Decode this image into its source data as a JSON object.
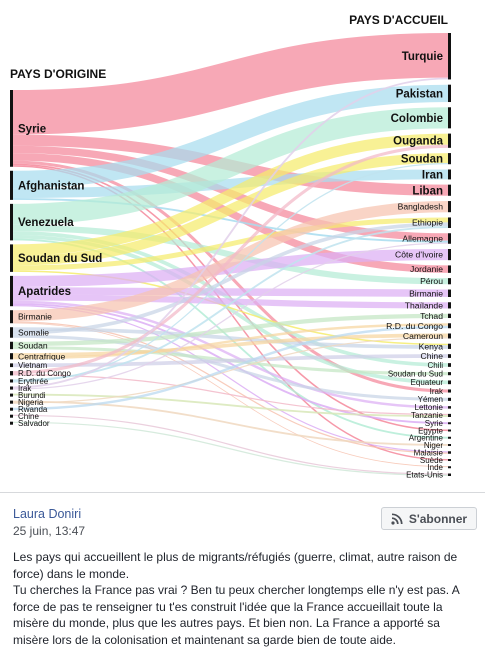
{
  "chart_data": {
    "type": "sankey",
    "left_header": "PAYS D'ORIGINE",
    "right_header": "PAYS D'ACCUEIL",
    "origins": [
      {
        "name": "Syrie",
        "color": "#f4879a",
        "tier": 1
      },
      {
        "name": "Afghanistan",
        "color": "#a7dcef",
        "tier": 2
      },
      {
        "name": "Venezuela",
        "color": "#b4ecd6",
        "tier": 2
      },
      {
        "name": "Soudan du Sud",
        "color": "#f5ec6c",
        "tier": 2
      },
      {
        "name": "Apatrides",
        "color": "#dcaef4",
        "tier": 2
      },
      {
        "name": "Birmanie",
        "color": "#f7c3b0",
        "tier": 3
      },
      {
        "name": "Somalie",
        "color": "#c7d4e6",
        "tier": 3
      },
      {
        "name": "Soudan",
        "color": "#c3e6c3",
        "tier": 3
      },
      {
        "name": "Centrafrique",
        "color": "#f6d6a0",
        "tier": 3
      },
      {
        "name": "Vietnam",
        "color": "#cfcfe8",
        "tier": 4
      },
      {
        "name": "R.D. du Congo",
        "color": "#f2b8c8",
        "tier": 4
      },
      {
        "name": "Erythrée",
        "color": "#bfe3ee",
        "tier": 4
      },
      {
        "name": "Irak",
        "color": "#e2d0ea",
        "tier": 4
      },
      {
        "name": "Burundi",
        "color": "#d8e8b8",
        "tier": 4
      },
      {
        "name": "Nigeria",
        "color": "#f0d8c0",
        "tier": 4
      },
      {
        "name": "Rwanda",
        "color": "#b8d8f0",
        "tier": 4
      },
      {
        "name": "Chine",
        "color": "#e8c8d8",
        "tier": 4
      },
      {
        "name": "Salvador",
        "color": "#d0e8d8",
        "tier": 4
      }
    ],
    "destinations": [
      {
        "name": "Turquie",
        "tier": 1
      },
      {
        "name": "Pakistan",
        "tier": 2
      },
      {
        "name": "Colombie",
        "tier": 2
      },
      {
        "name": "Ouganda",
        "tier": 2
      },
      {
        "name": "Soudan",
        "tier": 2
      },
      {
        "name": "Iran",
        "tier": 2
      },
      {
        "name": "Liban",
        "tier": 2
      },
      {
        "name": "Bangladesh",
        "tier": 3
      },
      {
        "name": "Ethiopie",
        "tier": 3
      },
      {
        "name": "Allemagne",
        "tier": 3
      },
      {
        "name": "Côte d'Ivoire",
        "tier": 3
      },
      {
        "name": "Jordanie",
        "tier": 3
      },
      {
        "name": "Pérou",
        "tier": 3
      },
      {
        "name": "Birmanie",
        "tier": 3
      },
      {
        "name": "Thaïlande",
        "tier": 3
      },
      {
        "name": "Tchad",
        "tier": 3
      },
      {
        "name": "R.D. du Congo",
        "tier": 3
      },
      {
        "name": "Cameroun",
        "tier": 3
      },
      {
        "name": "Kenya",
        "tier": 3
      },
      {
        "name": "Chine",
        "tier": 3
      },
      {
        "name": "Chili",
        "tier": 4
      },
      {
        "name": "Soudan du Sud",
        "tier": 4
      },
      {
        "name": "Equateur",
        "tier": 4
      },
      {
        "name": "Irak",
        "tier": 4
      },
      {
        "name": "Yémen",
        "tier": 4
      },
      {
        "name": "Lettonie",
        "tier": 4
      },
      {
        "name": "Tanzanie",
        "tier": 4
      },
      {
        "name": "Syrie",
        "tier": 4
      },
      {
        "name": "Egypte",
        "tier": 4
      },
      {
        "name": "Argentine",
        "tier": 4
      },
      {
        "name": "Niger",
        "tier": 4
      },
      {
        "name": "Malaisie",
        "tier": 4
      },
      {
        "name": "Suède",
        "tier": 4
      },
      {
        "name": "Inde",
        "tier": 4
      },
      {
        "name": "Etats-Unis",
        "tier": 4
      }
    ],
    "flows": [
      {
        "from": "Syrie",
        "to": "Turquie",
        "value": 3.6
      },
      {
        "from": "Syrie",
        "to": "Liban",
        "value": 0.9
      },
      {
        "from": "Syrie",
        "to": "Allemagne",
        "value": 0.6
      },
      {
        "from": "Syrie",
        "to": "Jordanie",
        "value": 0.6
      },
      {
        "from": "Syrie",
        "to": "Irak",
        "value": 0.25
      },
      {
        "from": "Syrie",
        "to": "Egypte",
        "value": 0.13
      },
      {
        "from": "Syrie",
        "to": "Suède",
        "value": 0.12
      },
      {
        "from": "Afghanistan",
        "to": "Pakistan",
        "value": 1.4
      },
      {
        "from": "Afghanistan",
        "to": "Iran",
        "value": 0.8
      },
      {
        "from": "Afghanistan",
        "to": "Allemagne",
        "value": 0.15
      },
      {
        "from": "Venezuela",
        "to": "Colombie",
        "value": 1.7
      },
      {
        "from": "Venezuela",
        "to": "Pérou",
        "value": 0.5
      },
      {
        "from": "Venezuela",
        "to": "Chili",
        "value": 0.3
      },
      {
        "from": "Venezuela",
        "to": "Equateur",
        "value": 0.3
      },
      {
        "from": "Venezuela",
        "to": "Argentine",
        "value": 0.15
      },
      {
        "from": "Soudan du Sud",
        "to": "Ouganda",
        "value": 0.9
      },
      {
        "from": "Soudan du Sud",
        "to": "Soudan",
        "value": 0.8
      },
      {
        "from": "Soudan du Sud",
        "to": "Ethiopie",
        "value": 0.4
      },
      {
        "from": "Soudan du Sud",
        "to": "Kenya",
        "value": 0.12
      },
      {
        "from": "Apatrides",
        "to": "Côte d'Ivoire",
        "value": 0.9
      },
      {
        "from": "Apatrides",
        "to": "Birmanie",
        "value": 0.6
      },
      {
        "from": "Apatrides",
        "to": "Thaïlande",
        "value": 0.5
      },
      {
        "from": "Apatrides",
        "to": "Lettonie",
        "value": 0.2
      },
      {
        "from": "Apatrides",
        "to": "Syrie",
        "value": 0.15
      },
      {
        "from": "Apatrides",
        "to": "Malaisie",
        "value": 0.1
      },
      {
        "from": "Birmanie",
        "to": "Bangladesh",
        "value": 0.9
      },
      {
        "from": "Birmanie",
        "to": "Malaisie",
        "value": 0.1
      },
      {
        "from": "Birmanie",
        "to": "Inde",
        "value": 0.05
      },
      {
        "from": "Somalie",
        "to": "Kenya",
        "value": 0.3
      },
      {
        "from": "Somalie",
        "to": "Ethiopie",
        "value": 0.3
      },
      {
        "from": "Somalie",
        "to": "Yémen",
        "value": 0.25
      },
      {
        "from": "Soudan",
        "to": "Tchad",
        "value": 0.35
      },
      {
        "from": "Soudan",
        "to": "Soudan du Sud",
        "value": 0.25
      },
      {
        "from": "Centrafrique",
        "to": "Cameroun",
        "value": 0.3
      },
      {
        "from": "Centrafrique",
        "to": "R.D. du Congo",
        "value": 0.2
      },
      {
        "from": "Vietnam",
        "to": "Chine",
        "value": 0.3
      },
      {
        "from": "R.D. du Congo",
        "to": "Ouganda",
        "value": 0.25
      },
      {
        "from": "R.D. du Congo",
        "to": "Tanzanie",
        "value": 0.1
      },
      {
        "from": "Erythrée",
        "to": "Ethiopie",
        "value": 0.15
      },
      {
        "from": "Erythrée",
        "to": "Soudan",
        "value": 0.1
      },
      {
        "from": "Irak",
        "to": "Turquie",
        "value": 0.15
      },
      {
        "from": "Irak",
        "to": "Allemagne",
        "value": 0.1
      },
      {
        "from": "Burundi",
        "to": "Tanzanie",
        "value": 0.15
      },
      {
        "from": "Nigeria",
        "to": "Niger",
        "value": 0.15
      },
      {
        "from": "Nigeria",
        "to": "Cameroun",
        "value": 0.1
      },
      {
        "from": "Rwanda",
        "to": "R.D. du Congo",
        "value": 0.2
      },
      {
        "from": "Chine",
        "to": "Etats-Unis",
        "value": 0.1
      },
      {
        "from": "Salvador",
        "to": "Etats-Unis",
        "value": 0.1
      }
    ]
  },
  "post": {
    "author": "Laura Doniri",
    "date": "25 juin, 13:47",
    "follow_label": "S'abonner",
    "follow_icon": "rss-icon",
    "text": "Les pays qui accueillent le plus de migrants/réfugiés (guerre, climat, autre raison de force) dans le monde.\nTu cherches la France pas vrai ? Ben tu peux chercher longtemps elle n'y est pas. A force de pas te renseigner tu t'es construit l'idée que la France accueillait toute la misère du monde, plus que les autres pays. Et bien non. La France a apporté sa misère lors de la colonisation et maintenant sa garde bien de toute aide."
  }
}
